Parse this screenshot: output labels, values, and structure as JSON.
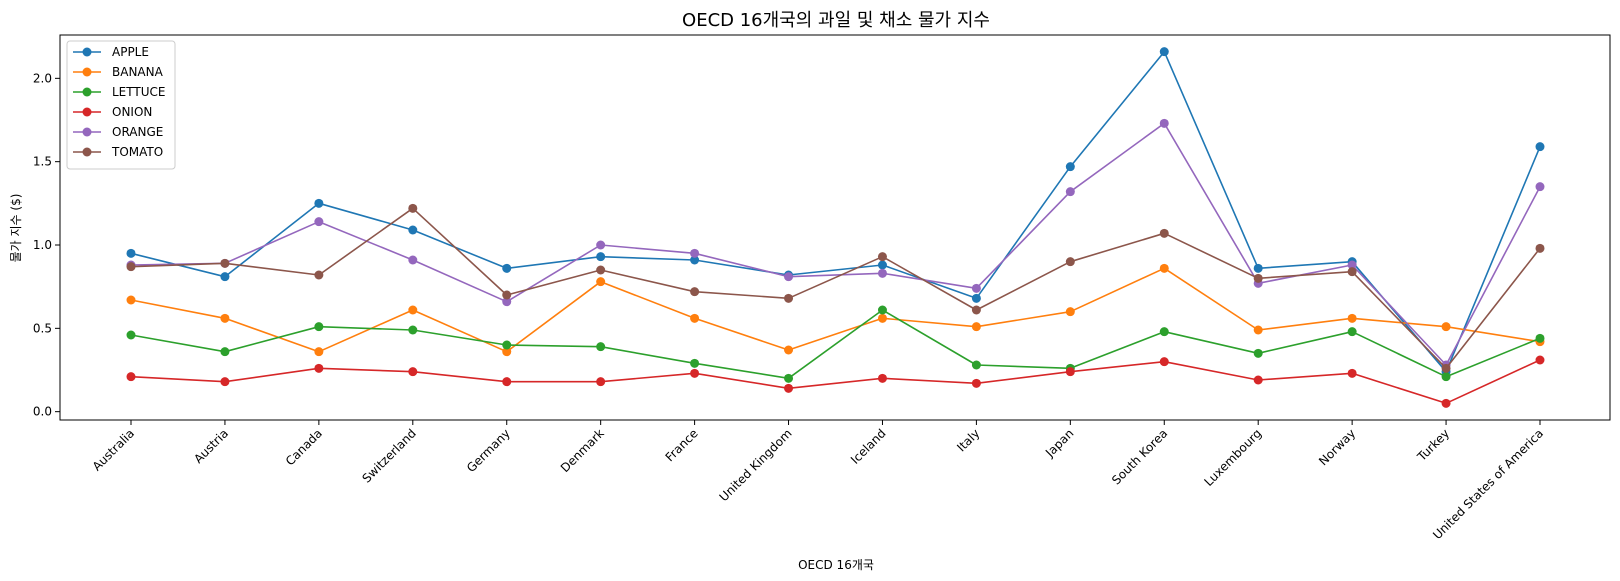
{
  "chart_data": {
    "type": "line",
    "title": "OECD 16개국의 과일 및 채소 물가 지수",
    "xlabel": "OECD 16개국",
    "ylabel": "물가 지수 ($)",
    "categories": [
      "Australia",
      "Austria",
      "Canada",
      "Switzerland",
      "Germany",
      "Denmark",
      "France",
      "United Kingdom",
      "Iceland",
      "Italy",
      "Japan",
      "South Korea",
      "Luxembourg",
      "Norway",
      "Turkey",
      "United States of America"
    ],
    "yticks": [
      "0.0",
      "0.5",
      "1.0",
      "1.5",
      "2.0"
    ],
    "ylim": [
      -0.05,
      2.26
    ],
    "grid": false,
    "legend_position": "top-left",
    "series": [
      {
        "name": "APPLE",
        "color": "#1f77b4",
        "values": [
          0.95,
          0.81,
          1.25,
          1.09,
          0.86,
          0.93,
          0.91,
          0.82,
          0.88,
          0.68,
          1.47,
          2.16,
          0.86,
          0.9,
          0.24,
          1.59
        ]
      },
      {
        "name": "BANANA",
        "color": "#ff7f0e",
        "values": [
          0.67,
          0.56,
          0.36,
          0.61,
          0.36,
          0.78,
          0.56,
          0.37,
          0.56,
          0.51,
          0.6,
          0.86,
          0.49,
          0.56,
          0.51,
          0.42
        ]
      },
      {
        "name": "LETTUCE",
        "color": "#2ca02c",
        "values": [
          0.46,
          0.36,
          0.51,
          0.49,
          0.4,
          0.39,
          0.29,
          0.2,
          0.61,
          0.28,
          0.26,
          0.48,
          0.35,
          0.48,
          0.21,
          0.44
        ]
      },
      {
        "name": "ONION",
        "color": "#d62728",
        "values": [
          0.21,
          0.18,
          0.26,
          0.24,
          0.18,
          0.18,
          0.23,
          0.14,
          0.2,
          0.17,
          0.24,
          0.3,
          0.19,
          0.23,
          0.05,
          0.31
        ]
      },
      {
        "name": "ORANGE",
        "color": "#9467bd",
        "values": [
          0.88,
          0.89,
          1.14,
          0.91,
          0.66,
          1.0,
          0.95,
          0.81,
          0.83,
          0.74,
          1.32,
          1.73,
          0.77,
          0.88,
          0.28,
          1.35
        ]
      },
      {
        "name": "TOMATO",
        "color": "#8c564b",
        "values": [
          0.87,
          0.89,
          0.82,
          1.22,
          0.7,
          0.85,
          0.72,
          0.68,
          0.93,
          0.61,
          0.9,
          1.07,
          0.8,
          0.84,
          0.26,
          0.98
        ]
      }
    ]
  }
}
